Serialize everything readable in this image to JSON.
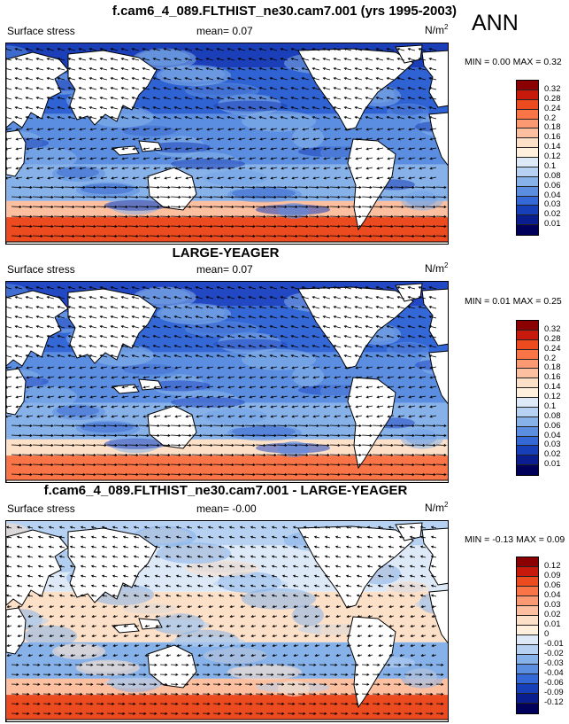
{
  "season": "ANN",
  "panels": [
    {
      "title": "f.cam6_4_089.FLTHIST_ne30.cam7.001 (yrs 1995-2003)",
      "variable": "Surface stress",
      "mean_label": "mean=",
      "mean_value": "0.07",
      "unit_base": "N/m",
      "unit_exp": "2",
      "min_label": "MIN =",
      "min_value": "0.00",
      "max_label": "MAX =",
      "max_value": "0.32",
      "colorbar_labels": [
        "0.32",
        "0.28",
        "0.24",
        "0.2",
        "0.18",
        "0.16",
        "0.14",
        "0.12",
        "0.1",
        "0.08",
        "0.06",
        "0.04",
        "0.03",
        "0.02",
        "0.01"
      ],
      "colorbar_colors": [
        "#8b0000",
        "#c81a0c",
        "#ec4a1f",
        "#f97548",
        "#fb9a72",
        "#fcbfa0",
        "#fde0c8",
        "#ffefdd",
        "#dde9f7",
        "#b6d1f1",
        "#87b2e9",
        "#5b8ee0",
        "#3468d6",
        "#1740b8",
        "#0a1e8f",
        "#00005a"
      ]
    },
    {
      "title": "LARGE-YEAGER",
      "variable": "Surface stress",
      "mean_label": "mean=",
      "mean_value": "0.07",
      "unit_base": "N/m",
      "unit_exp": "2",
      "min_label": "MIN =",
      "min_value": "0.01",
      "max_label": "MAX =",
      "max_value": "0.25",
      "colorbar_labels": [
        "0.32",
        "0.28",
        "0.24",
        "0.2",
        "0.18",
        "0.16",
        "0.14",
        "0.12",
        "0.1",
        "0.08",
        "0.06",
        "0.04",
        "0.03",
        "0.02",
        "0.01"
      ],
      "colorbar_colors": [
        "#8b0000",
        "#c81a0c",
        "#ec4a1f",
        "#f97548",
        "#fb9a72",
        "#fcbfa0",
        "#fde0c8",
        "#ffefdd",
        "#dde9f7",
        "#b6d1f1",
        "#87b2e9",
        "#5b8ee0",
        "#3468d6",
        "#1740b8",
        "#0a1e8f",
        "#00005a"
      ]
    },
    {
      "title": "f.cam6_4_089.FLTHIST_ne30.cam7.001 - LARGE-YEAGER",
      "variable": "Surface stress",
      "mean_label": "mean=",
      "mean_value": "-0.00",
      "unit_base": "N/m",
      "unit_exp": "2",
      "min_label": "MIN =",
      "min_value": "-0.13",
      "max_label": "MAX =",
      "max_value": "0.09",
      "colorbar_labels": [
        "0.12",
        "0.09",
        "0.06",
        "0.04",
        "0.03",
        "0.02",
        "0.01",
        "0",
        "-0.01",
        "-0.02",
        "-0.03",
        "-0.04",
        "-0.06",
        "-0.09",
        "-0.12"
      ],
      "colorbar_colors": [
        "#8b0000",
        "#c81a0c",
        "#ec4a1f",
        "#f97548",
        "#fb9a72",
        "#fcbfa0",
        "#fde0c8",
        "#ffefdd",
        "#dde9f7",
        "#b6d1f1",
        "#87b2e9",
        "#5b8ee0",
        "#3468d6",
        "#1740b8",
        "#0a1e8f",
        "#00005a"
      ]
    }
  ]
}
